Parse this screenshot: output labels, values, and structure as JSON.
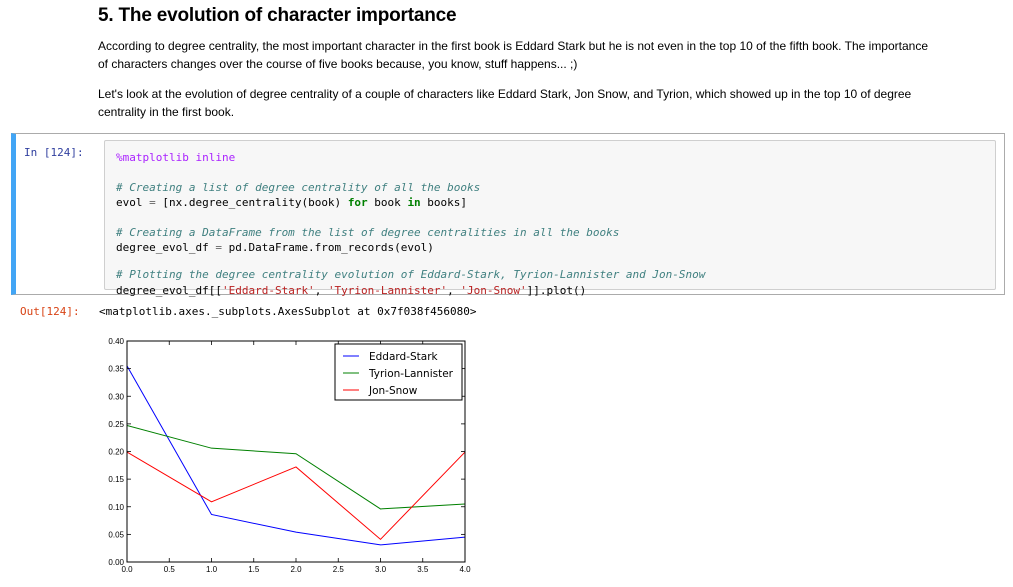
{
  "markdown": {
    "title": "5. The evolution of character importance",
    "paragraph1_line1": "According to degree centrality, the most important character in the first book is Eddard Stark but he is not even in the top 10 of the fifth book. The importance",
    "paragraph1_line2": "of characters changes over the course of five books because, you know, stuff happens... ;)",
    "paragraph2_line1": "Let's look at the evolution of degree centrality of a couple of characters like Eddard Stark, Jon Snow, and Tyrion, which showed up in the top 10 of degree",
    "paragraph2_line2": "centrality in the first book."
  },
  "cell": {
    "in_prompt": "In [124]:",
    "out_prompt": "Out[124]:",
    "output_text": "<matplotlib.axes._subplots.AxesSubplot at 0x7f038f456080>",
    "code": {
      "magic": "%matplotlib inline",
      "c1": "# Creating a list of degree centrality of all the books",
      "l1_a": "evol ",
      "l1_eq": "=",
      "l1_b": " [nx.degree_centrality(book) ",
      "l1_for": "for",
      "l1_c": " book ",
      "l1_in": "in",
      "l1_d": " books]",
      "c2": "# Creating a DataFrame from the list of degree centralities in all the books",
      "l2_a": "degree_evol_df ",
      "l2_eq": "=",
      "l2_b": " pd.DataFrame.from_records(evol)",
      "c3": "# Plotting the degree centrality evolution of Eddard-Stark, Tyrion-Lannister and Jon-Snow",
      "l3_a": "degree_evol_df[[",
      "l3_s1": "'Eddard-Stark'",
      "l3_sep1": ", ",
      "l3_s2": "'Tyrion-Lannister'",
      "l3_sep2": ", ",
      "l3_s3": "'Jon-Snow'",
      "l3_b": "]].plot()"
    }
  },
  "chart_data": {
    "type": "line",
    "x": [
      0,
      1,
      2,
      3,
      4
    ],
    "xlim": [
      0,
      4
    ],
    "ylim": [
      0,
      0.4
    ],
    "xticks": [
      "0.0",
      "0.5",
      "1.0",
      "1.5",
      "2.0",
      "2.5",
      "3.0",
      "3.5",
      "4.0"
    ],
    "yticks": [
      "0.00",
      "0.05",
      "0.10",
      "0.15",
      "0.20",
      "0.25",
      "0.30",
      "0.35",
      "0.40"
    ],
    "legend_position": "top-right",
    "series": [
      {
        "name": "Eddard-Stark",
        "color": "#0000ff",
        "values": [
          0.355,
          0.086,
          0.054,
          0.031,
          0.045
        ]
      },
      {
        "name": "Tyrion-Lannister",
        "color": "#008000",
        "values": [
          0.247,
          0.206,
          0.196,
          0.096,
          0.105
        ]
      },
      {
        "name": "Jon-Snow",
        "color": "#ff0000",
        "values": [
          0.199,
          0.109,
          0.172,
          0.041,
          0.199
        ]
      }
    ]
  }
}
